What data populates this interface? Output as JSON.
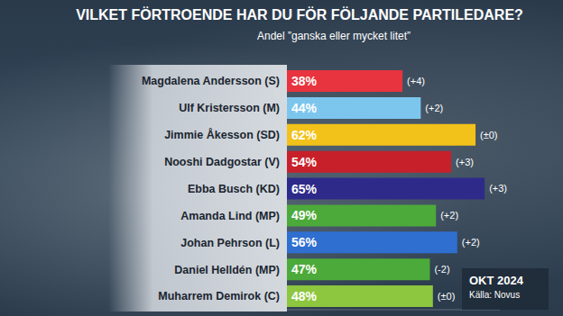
{
  "chart_data": {
    "type": "bar",
    "orientation": "horizontal",
    "title": "VILKET FÖRTROENDE HAR DU FÖR FÖLJANDE PARTILEDARE?",
    "subtitle": "Andel ”ganska eller mycket litet”",
    "categories": [
      "Magdalena Andersson (S)",
      "Ulf Kristersson (M)",
      "Jimmie Åkesson (SD)",
      "Nooshi Dadgostar (V)",
      "Ebba Busch (KD)",
      "Amanda Lind (MP)",
      "Johan Pehrson (L)",
      "Daniel Helldén (MP)",
      "Muharrem Demirok (C)"
    ],
    "values": [
      38,
      44,
      62,
      54,
      65,
      49,
      56,
      47,
      48
    ],
    "value_labels": [
      "38%",
      "44%",
      "62%",
      "54%",
      "65%",
      "49%",
      "56%",
      "47%",
      "48%"
    ],
    "change_labels": [
      "(+4)",
      "(+2)",
      "(±0)",
      "(+3)",
      "(+3)",
      "(+2)",
      "(+2)",
      "(-2)",
      "(±0)"
    ],
    "colors": [
      "#e8343e",
      "#7cc6ee",
      "#f2c21b",
      "#c8202a",
      "#2e2a8a",
      "#4caa3a",
      "#2f6fd0",
      "#4caa3a",
      "#8dc63f"
    ],
    "xlim": [
      0,
      70
    ],
    "xticks": [],
    "data_labels": true,
    "tick_labels": "y",
    "grid": false,
    "date_label": "OKT 2024",
    "source": "Källa: Novus"
  }
}
